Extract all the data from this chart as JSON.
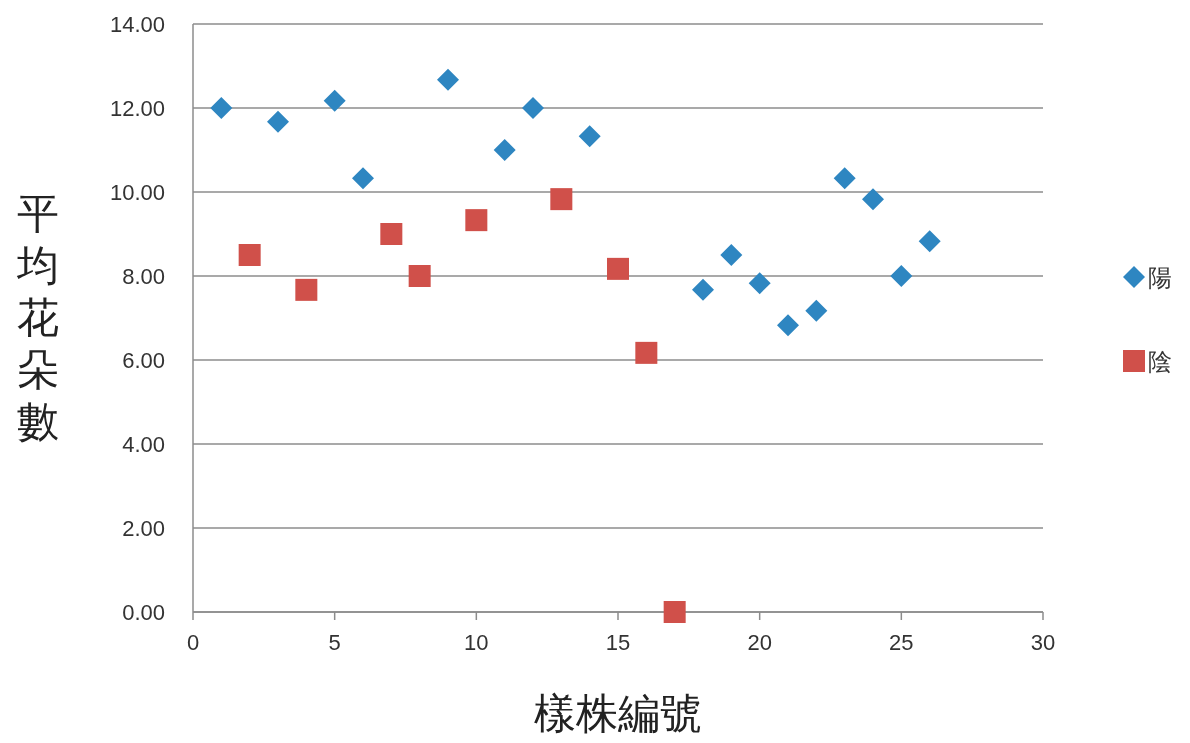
{
  "chart_data": {
    "type": "scatter",
    "xlabel": "樣株編號",
    "ylabel": "平均花朵數",
    "series": [
      {
        "name": "陽",
        "color": "#2e86c1",
        "marker": "diamond",
        "x": [
          1,
          3,
          5,
          6,
          9,
          11,
          12,
          14,
          18,
          19,
          20,
          21,
          22,
          23,
          24,
          25,
          26
        ],
        "values": [
          12.0,
          11.67,
          12.17,
          10.33,
          12.67,
          11.0,
          12.0,
          11.33,
          7.67,
          8.5,
          7.83,
          6.83,
          7.17,
          10.33,
          9.83,
          8.0,
          8.83
        ]
      },
      {
        "name": "陰",
        "color": "#d0504a",
        "marker": "square",
        "x": [
          2,
          4,
          7,
          8,
          10,
          13,
          15,
          16,
          17
        ],
        "values": [
          8.5,
          7.67,
          9.0,
          8.0,
          9.33,
          9.83,
          8.17,
          6.17,
          0.0
        ]
      }
    ],
    "xlim": [
      0,
      30
    ],
    "xticks": [
      0,
      5,
      10,
      15,
      20,
      25,
      30
    ],
    "ylim": [
      0,
      14
    ],
    "yticks": [
      {
        "value": 0,
        "label": "0.00"
      },
      {
        "value": 2,
        "label": "2.00"
      },
      {
        "value": 4,
        "label": "4.00"
      },
      {
        "value": 6,
        "label": "6.00"
      },
      {
        "value": 8,
        "label": "8.00"
      },
      {
        "value": 10,
        "label": "10.00"
      },
      {
        "value": 12,
        "label": "12.00"
      },
      {
        "value": 14,
        "label": "14.00"
      }
    ],
    "grid": "y",
    "legend": "right"
  }
}
